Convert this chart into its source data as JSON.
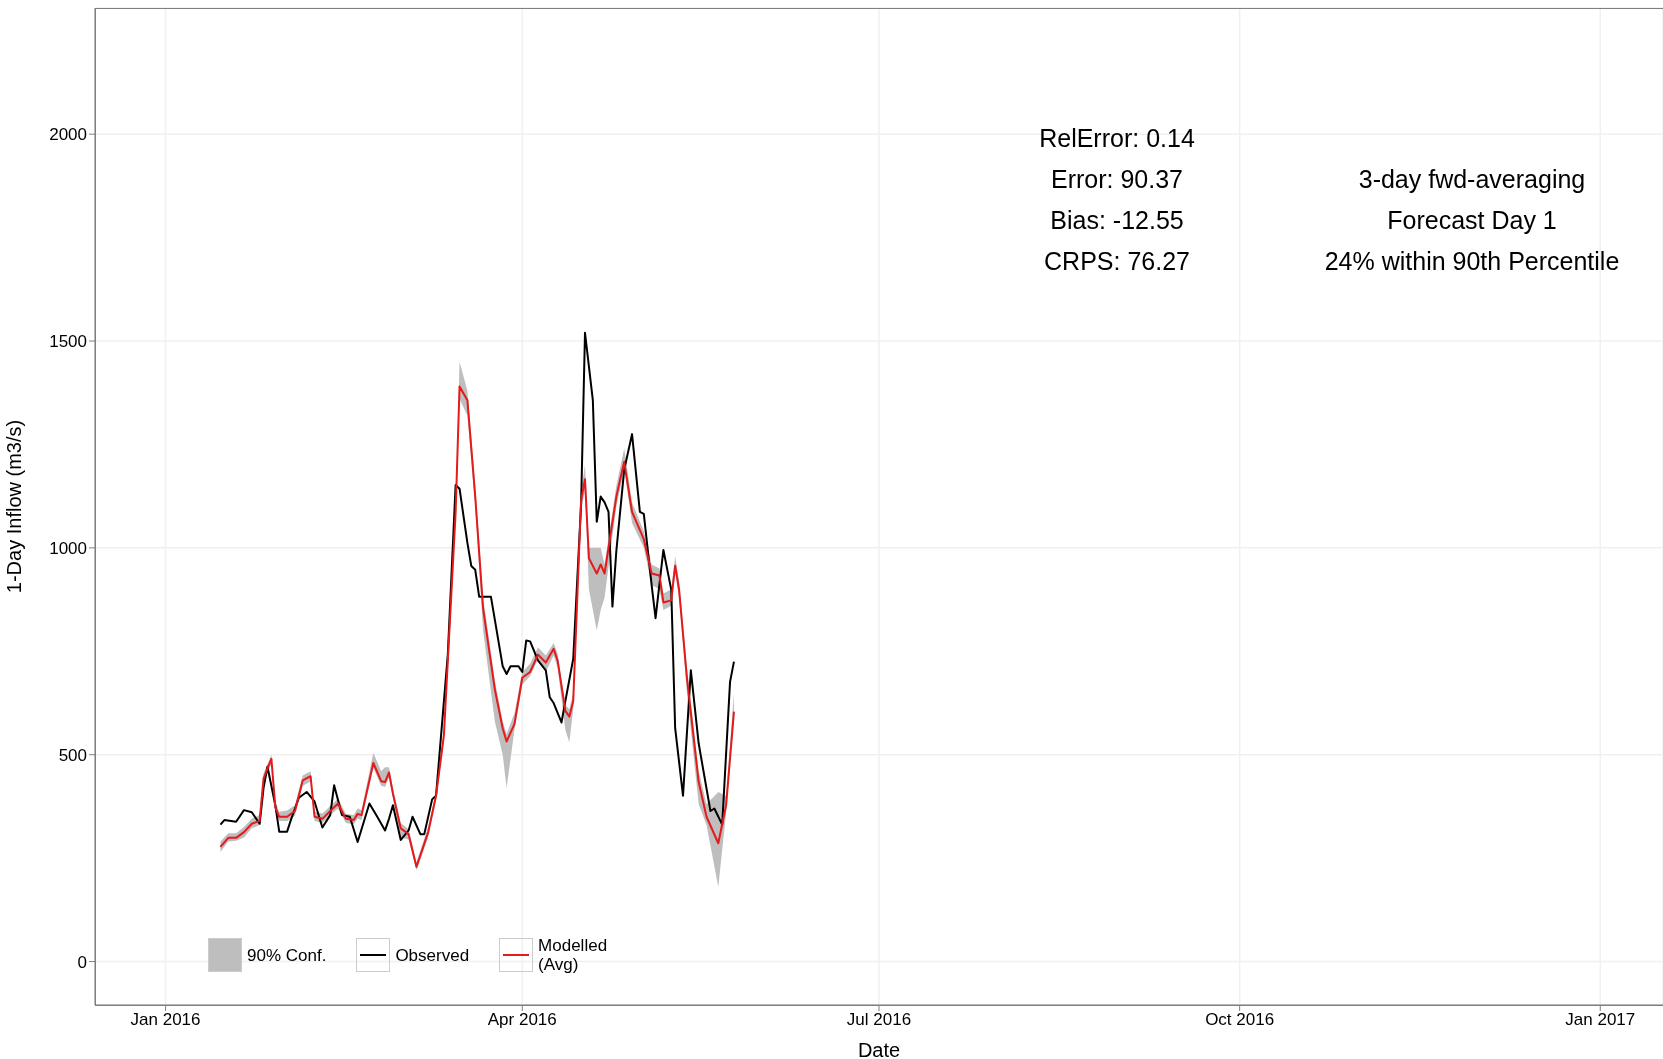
{
  "chart_data": {
    "type": "line",
    "xlabel": "Date",
    "ylabel": "1-Day Inflow (m3/s)",
    "xlim": [
      "2015-12-14",
      "2017-01-17"
    ],
    "xticks": [
      {
        "value": "2016-01-01",
        "label": "Jan 2016"
      },
      {
        "value": "2016-04-01",
        "label": "Apr 2016"
      },
      {
        "value": "2016-07-01",
        "label": "Jul 2016"
      },
      {
        "value": "2016-10-01",
        "label": "Oct 2016"
      },
      {
        "value": "2017-01-01",
        "label": "Jan 2017"
      }
    ],
    "ylim": [
      -105,
      2305
    ],
    "yticks": [
      0,
      500,
      1000,
      1500,
      2000
    ],
    "grid": true,
    "legend": "bottom left",
    "line_style": "solid",
    "marker": "none",
    "annotations": [
      "RelError: 0.14",
      "Error: 90.37",
      "Bias: -12.55",
      "CRPS: 76.27",
      "3-day fwd-averaging",
      "Forecast Day 1",
      "24% within 90th Percentile"
    ],
    "series": [
      {
        "name": "90% Conf.",
        "type": "area",
        "color": "#bebebe"
      },
      {
        "name": "Observed",
        "color": "#000000",
        "x": [
          "2016-01-15",
          "2016-01-16",
          "2016-01-19",
          "2016-01-21",
          "2016-01-23",
          "2016-01-25",
          "2016-01-26",
          "2016-01-27",
          "2016-01-29",
          "2016-01-30",
          "2016-02-01",
          "2016-02-02",
          "2016-02-04",
          "2016-02-06",
          "2016-02-08",
          "2016-02-10",
          "2016-02-12",
          "2016-02-13",
          "2016-02-15",
          "2016-02-17",
          "2016-02-19",
          "2016-02-22",
          "2016-02-24",
          "2016-02-26",
          "2016-02-27",
          "2016-02-28",
          "2016-03-01",
          "2016-03-03",
          "2016-03-04",
          "2016-03-06",
          "2016-03-07",
          "2016-03-09",
          "2016-03-10",
          "2016-03-13",
          "2016-03-15",
          "2016-03-16",
          "2016-03-18",
          "2016-03-19",
          "2016-03-20",
          "2016-03-21",
          "2016-03-24",
          "2016-03-27",
          "2016-03-28",
          "2016-03-29",
          "2016-03-31",
          "2016-04-01",
          "2016-04-02",
          "2016-04-03",
          "2016-04-05",
          "2016-04-07",
          "2016-04-08",
          "2016-04-09",
          "2016-04-11",
          "2016-04-12",
          "2016-04-14",
          "2016-04-16",
          "2016-04-17",
          "2016-04-19",
          "2016-04-20",
          "2016-04-21",
          "2016-04-22",
          "2016-04-23",
          "2016-04-24",
          "2016-04-25",
          "2016-04-27",
          "2016-04-29",
          "2016-05-01",
          "2016-05-02",
          "2016-05-04",
          "2016-05-05",
          "2016-05-07",
          "2016-05-09",
          "2016-05-10",
          "2016-05-12",
          "2016-05-14",
          "2016-05-16",
          "2016-05-19",
          "2016-05-20",
          "2016-05-22",
          "2016-05-24",
          "2016-05-25"
        ],
        "values": [
          331,
          342,
          338,
          366,
          361,
          333,
          420,
          471,
          378,
          314,
          314,
          343,
          396,
          410,
          387,
          324,
          354,
          426,
          354,
          350,
          289,
          382,
          350,
          317,
          345,
          378,
          294,
          317,
          350,
          308,
          308,
          392,
          401,
          742,
          1152,
          1143,
          1012,
          956,
          947,
          882,
          882,
          714,
          695,
          714,
          714,
          700,
          776,
          774,
          728,
          704,
          639,
          625,
          578,
          630,
          732,
          1105,
          1520,
          1357,
          1063,
          1124,
          1110,
          1087,
          858,
          993,
          1189,
          1275,
          1087,
          1082,
          910,
          830,
          995,
          899,
          564,
          401,
          704,
          527,
          364,
          370,
          331,
          676,
          725
        ]
      },
      {
        "name": "Modelled\n(Avg)",
        "color": "#e41a1c",
        "x": [
          "2016-01-15",
          "2016-01-17",
          "2016-01-19",
          "2016-01-21",
          "2016-01-23",
          "2016-01-25",
          "2016-01-26",
          "2016-01-28",
          "2016-01-29",
          "2016-01-30",
          "2016-02-01",
          "2016-02-03",
          "2016-02-05",
          "2016-02-07",
          "2016-02-08",
          "2016-02-10",
          "2016-02-13",
          "2016-02-14",
          "2016-02-16",
          "2016-02-18",
          "2016-02-19",
          "2016-02-20",
          "2016-02-23",
          "2016-02-25",
          "2016-02-26",
          "2016-02-27",
          "2016-02-28",
          "2016-03-01",
          "2016-03-03",
          "2016-03-05",
          "2016-03-08",
          "2016-03-10",
          "2016-03-12",
          "2016-03-15",
          "2016-03-16",
          "2016-03-18",
          "2016-03-20",
          "2016-03-22",
          "2016-03-25",
          "2016-03-27",
          "2016-03-28",
          "2016-03-30",
          "2016-04-01",
          "2016-04-03",
          "2016-04-05",
          "2016-04-07",
          "2016-04-09",
          "2016-04-10",
          "2016-04-12",
          "2016-04-13",
          "2016-04-14",
          "2016-04-16",
          "2016-04-17",
          "2016-04-18",
          "2016-04-20",
          "2016-04-21",
          "2016-04-22",
          "2016-04-25",
          "2016-04-27",
          "2016-04-29",
          "2016-05-02",
          "2016-05-04",
          "2016-05-06",
          "2016-05-07",
          "2016-05-09",
          "2016-05-10",
          "2016-05-11",
          "2016-05-13",
          "2016-05-16",
          "2016-05-18",
          "2016-05-21",
          "2016-05-23",
          "2016-05-25"
        ],
        "values": [
          277,
          299,
          299,
          313,
          333,
          340,
          443,
          490,
          373,
          350,
          350,
          364,
          438,
          448,
          350,
          345,
          373,
          382,
          345,
          342,
          357,
          354,
          480,
          436,
          434,
          457,
          406,
          322,
          308,
          229,
          313,
          401,
          546,
          1087,
          1390,
          1357,
          1124,
          854,
          658,
          564,
          532,
          574,
          686,
          700,
          742,
          723,
          756,
          728,
          606,
          592,
          630,
          1115,
          1166,
          975,
          938,
          960,
          938,
          1124,
          1208,
          1087,
          1021,
          938,
          933,
          868,
          873,
          957,
          899,
          686,
          434,
          350,
          286,
          378,
          604
        ],
        "lower": [
          265,
          290,
          292,
          300,
          322,
          330,
          430,
          478,
          362,
          340,
          340,
          352,
          425,
          435,
          340,
          335,
          362,
          370,
          335,
          332,
          345,
          342,
          468,
          425,
          422,
          445,
          395,
          300,
          295,
          220,
          300,
          390,
          535,
          1070,
          1360,
          1320,
          1100,
          800,
          580,
          500,
          420,
          560,
          670,
          690,
          730,
          700,
          740,
          710,
          560,
          530,
          610,
          1090,
          1140,
          900,
          800,
          850,
          880,
          1100,
          1190,
          1060,
          1000,
          910,
          900,
          850,
          860,
          940,
          880,
          650,
          380,
          330,
          180,
          360,
          590
        ],
        "upper": [
          290,
          310,
          310,
          325,
          345,
          355,
          455,
          500,
          385,
          362,
          365,
          378,
          450,
          460,
          362,
          358,
          385,
          395,
          357,
          354,
          370,
          366,
          505,
          460,
          470,
          470,
          420,
          335,
          320,
          240,
          325,
          412,
          560,
          1100,
          1450,
          1380,
          1150,
          880,
          680,
          580,
          550,
          600,
          700,
          720,
          760,
          740,
          770,
          745,
          620,
          610,
          650,
          1140,
          1200,
          1000,
          1000,
          1000,
          960,
          1150,
          1240,
          1110,
          1040,
          960,
          950,
          890,
          900,
          980,
          920,
          710,
          460,
          380,
          410,
          400,
          650
        ]
      }
    ]
  }
}
